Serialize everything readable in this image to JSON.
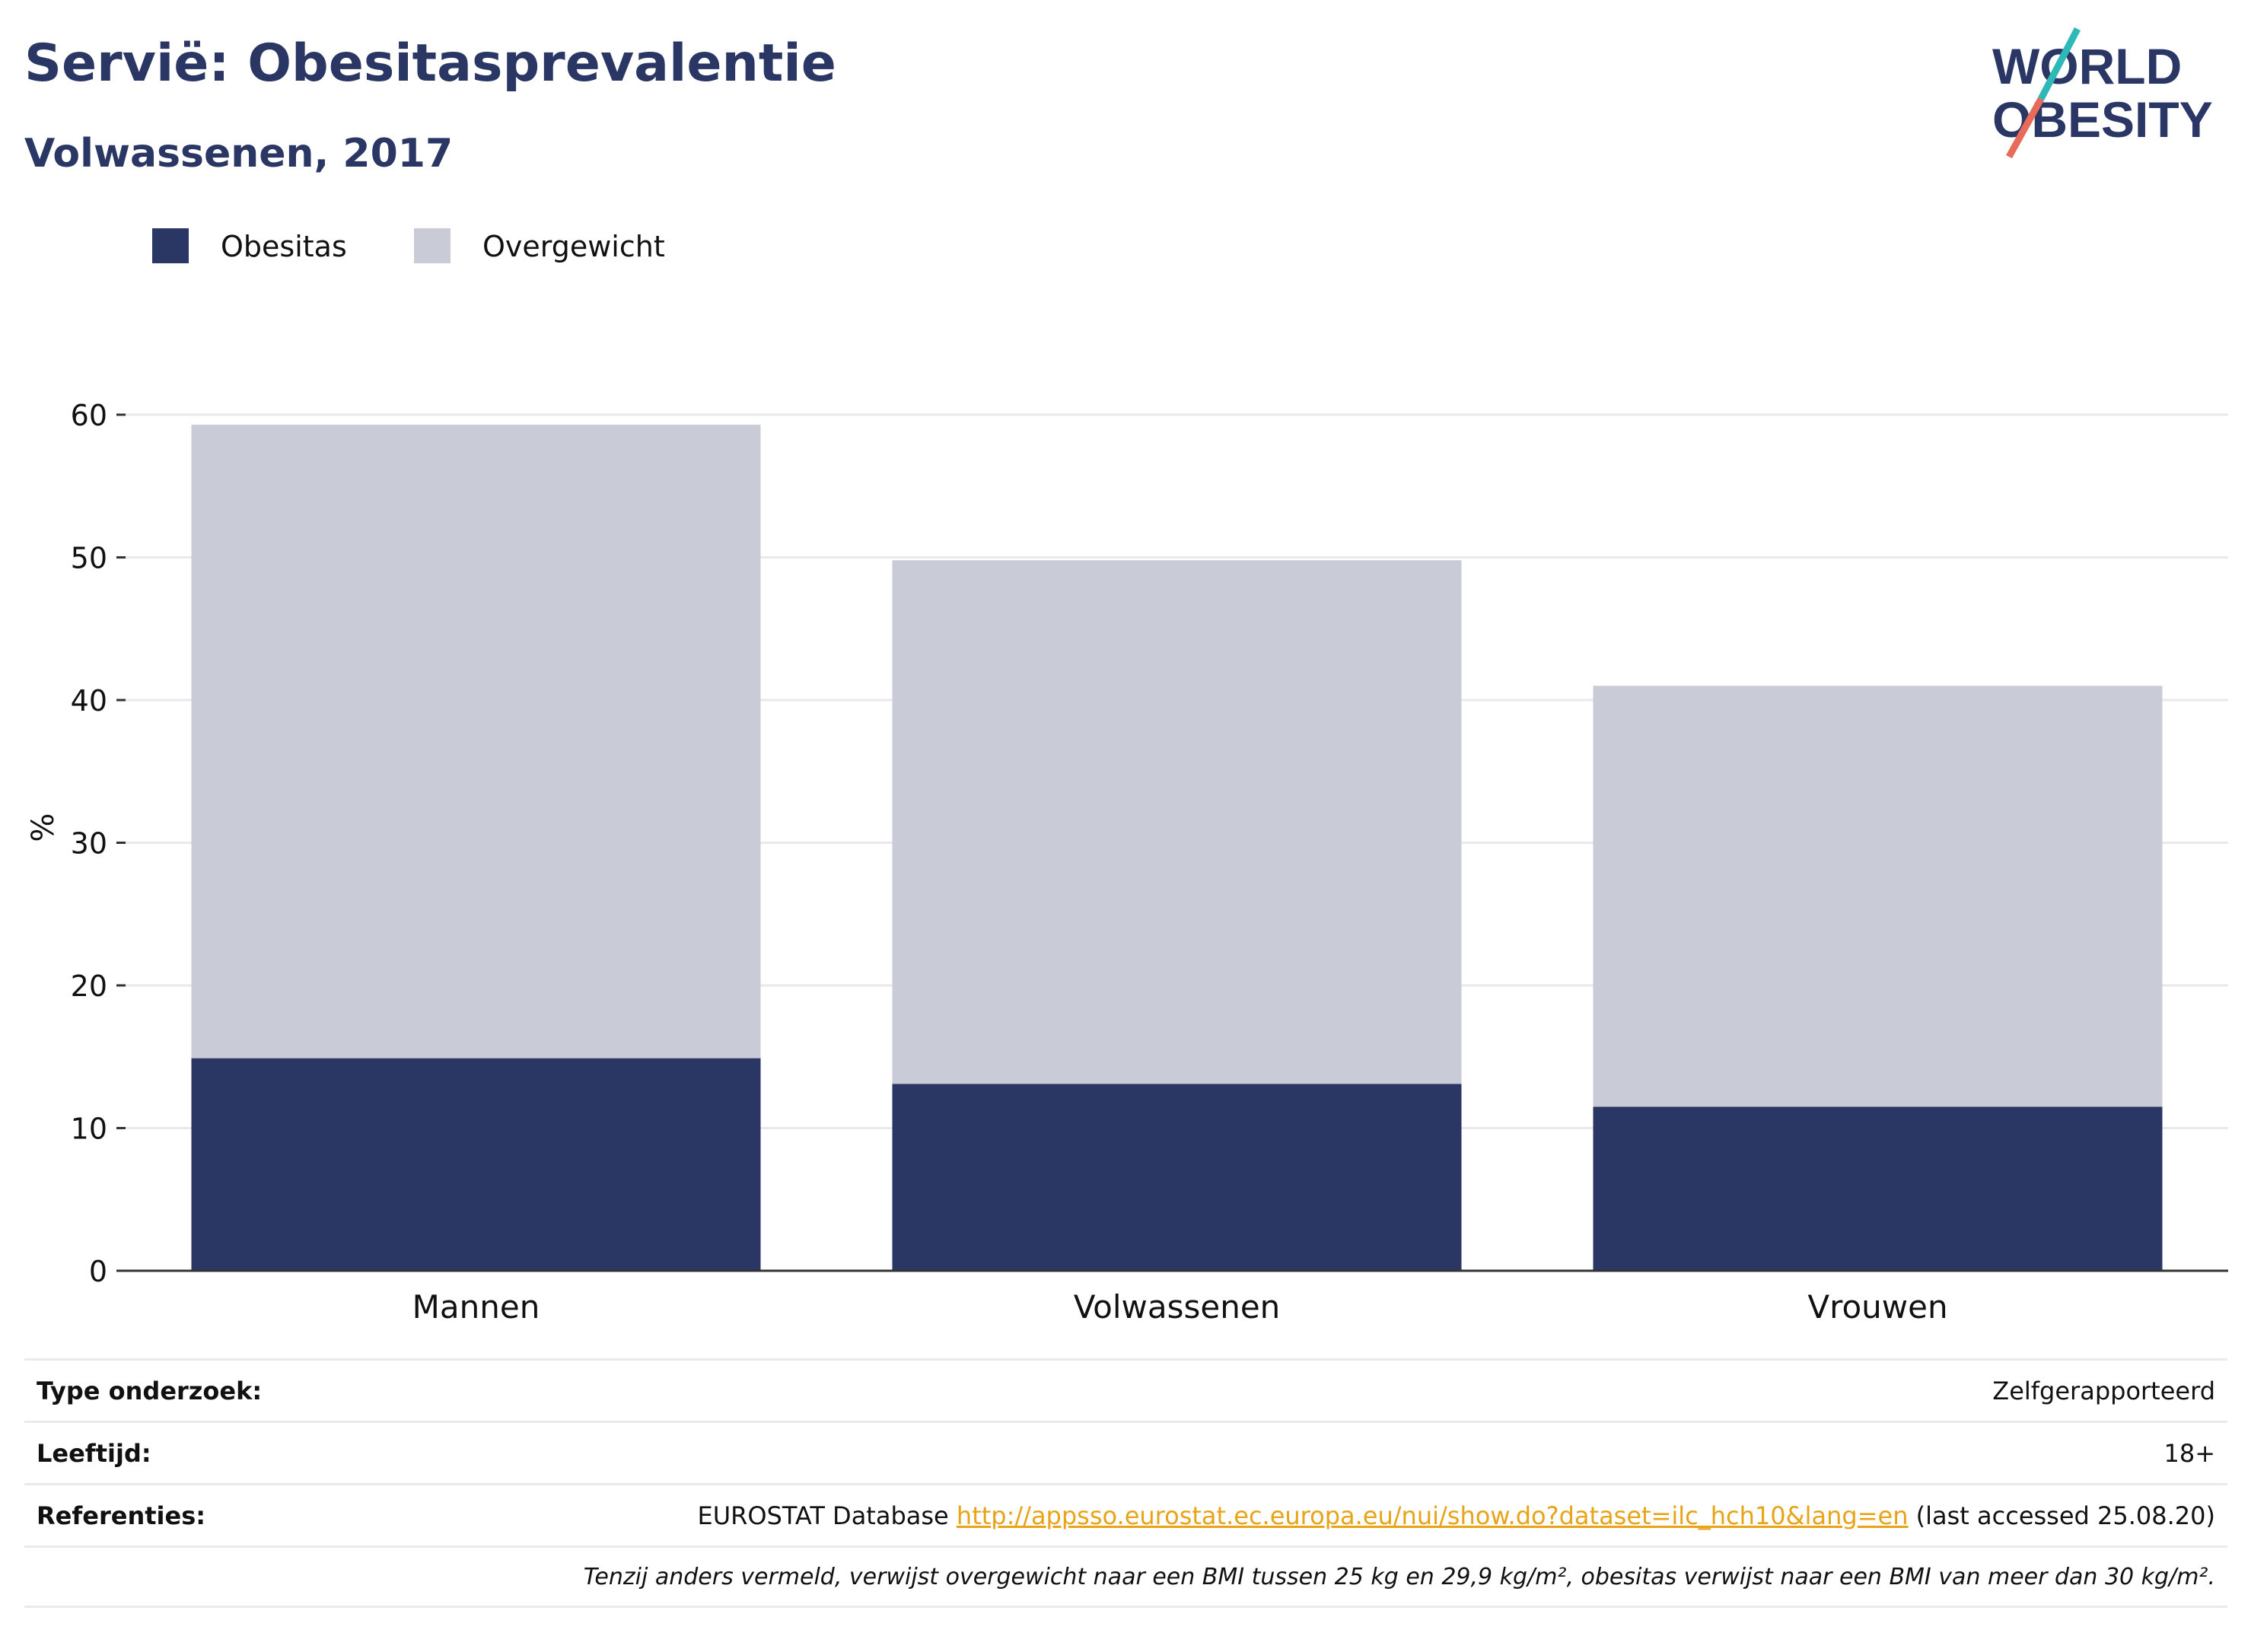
{
  "header": {
    "title": "Servië: Obesitasprevalentie",
    "subtitle": "Volwassenen, 2017"
  },
  "logo": {
    "line1": "WORLD",
    "line2": "OBESITY"
  },
  "chart_data": {
    "type": "bar",
    "stacked": true,
    "categories": [
      "Mannen",
      "Volwassenen",
      "Vrouwen"
    ],
    "series": [
      {
        "name": "Obesitas",
        "values": [
          14.9,
          13.1,
          11.5
        ],
        "color": "#2a3663"
      },
      {
        "name": "Overgewicht",
        "values": [
          44.4,
          36.7,
          29.5
        ],
        "color": "#c9cbd6"
      }
    ],
    "ylabel": "%",
    "ylim": [
      0,
      60
    ],
    "yticks": [
      0,
      10,
      20,
      30,
      40,
      50,
      60
    ],
    "grid": true,
    "legend": "top-left"
  },
  "meta": {
    "survey_type_label": "Type onderzoek:",
    "survey_type_value": "Zelfgerapporteerd",
    "age_label": "Leeftijd:",
    "age_value": "18+",
    "references_label": "Referenties:",
    "references_prefix": "EUROSTAT Database ",
    "references_link": "http://appsso.eurostat.ec.europa.eu/nui/show.do?dataset=ilc_hch10&lang=en",
    "references_suffix": " (last accessed 25.08.20)",
    "note": "Tenzij anders vermeld, verwijst overgewicht naar een BMI tussen 25 kg en 29,9 kg/m², obesitas verwijst naar een BMI van meer dan 30 kg/m²."
  }
}
